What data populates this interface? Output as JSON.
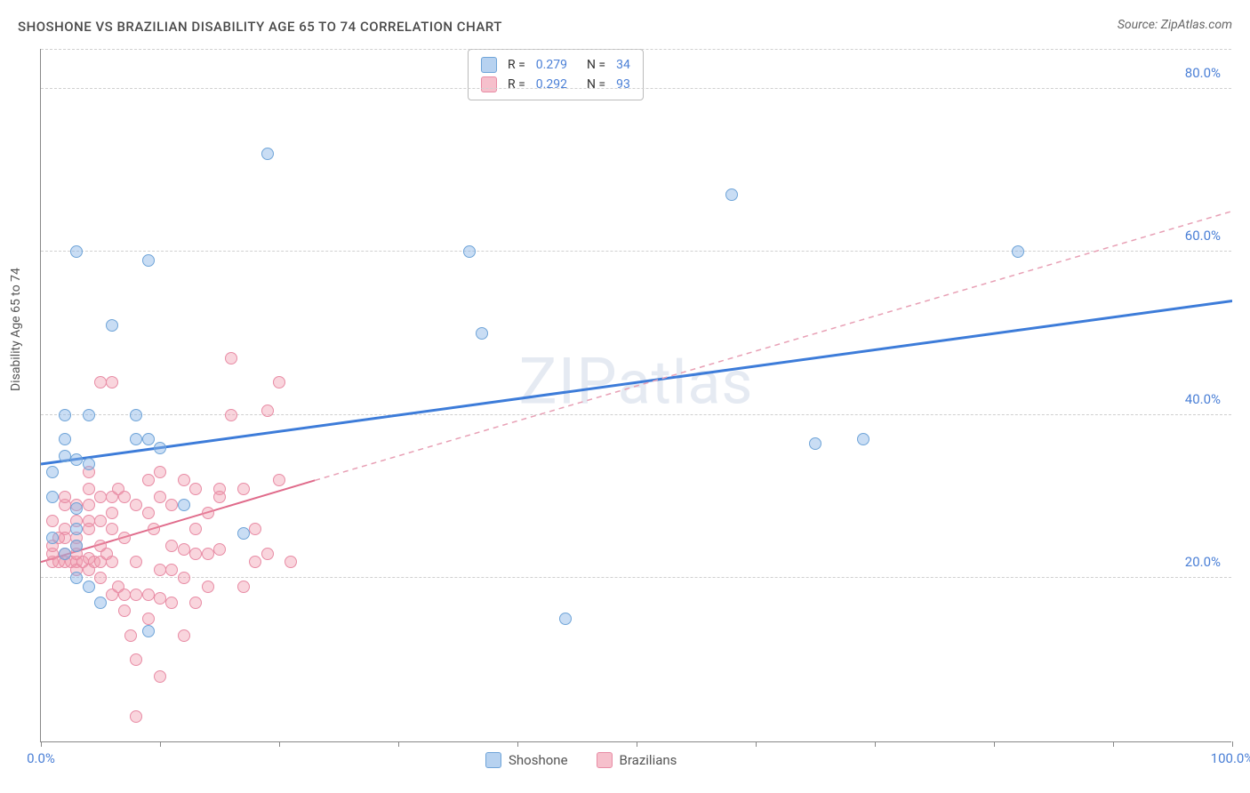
{
  "header": {
    "title": "SHOSHONE VS BRAZILIAN DISABILITY AGE 65 TO 74 CORRELATION CHART",
    "source": "Source: ZipAtlas.com"
  },
  "chart": {
    "type": "scatter",
    "ylabel": "Disability Age 65 to 74",
    "xlim": [
      0,
      100
    ],
    "ylim": [
      0,
      85
    ],
    "xticks": [
      0,
      10,
      20,
      30,
      40,
      50,
      60,
      70,
      80,
      90,
      100
    ],
    "xtick_labels": {
      "0": "0.0%",
      "100": "100.0%"
    },
    "yticks": [
      20,
      40,
      60,
      80
    ],
    "ytick_labels": [
      "20.0%",
      "40.0%",
      "60.0%",
      "80.0%"
    ],
    "grid_color": "#d0d0d0",
    "background_color": "#ffffff",
    "axis_color": "#888888",
    "tick_label_color": "#4a7fd6",
    "marker_size": 14,
    "watermark": "ZIPatlas",
    "series": [
      {
        "name": "Shoshone",
        "color_fill": "rgba(135,180,230,0.45)",
        "color_stroke": "#6fa4d8",
        "R": "0.279",
        "N": "34",
        "trend": {
          "x1": 0,
          "y1": 34,
          "x2": 100,
          "y2": 54,
          "dashed_after": 100,
          "stroke_width": 3
        },
        "points": [
          [
            3,
            60
          ],
          [
            9,
            59
          ],
          [
            2,
            40
          ],
          [
            2,
            37
          ],
          [
            3,
            34.5
          ],
          [
            2,
            35
          ],
          [
            1,
            33
          ],
          [
            1,
            30
          ],
          [
            3,
            28.5
          ],
          [
            3,
            26
          ],
          [
            6,
            51
          ],
          [
            8,
            40
          ],
          [
            8,
            37
          ],
          [
            9,
            37
          ],
          [
            19,
            72
          ],
          [
            36,
            60
          ],
          [
            37,
            50
          ],
          [
            12,
            29
          ],
          [
            17,
            25.5
          ],
          [
            5,
            17
          ],
          [
            9,
            13.5
          ],
          [
            44,
            15
          ],
          [
            65,
            36.5
          ],
          [
            69,
            37
          ],
          [
            82,
            60
          ],
          [
            4,
            40
          ],
          [
            58,
            67
          ],
          [
            4,
            34
          ],
          [
            2,
            23
          ],
          [
            3,
            24
          ],
          [
            4,
            19
          ],
          [
            3,
            20
          ],
          [
            1,
            25
          ],
          [
            10,
            36
          ]
        ]
      },
      {
        "name": "Brazilians",
        "color_fill": "rgba(240,150,170,0.4)",
        "color_stroke": "#e88ca5",
        "R": "0.292",
        "N": "93",
        "trend": {
          "x1": 0,
          "y1": 22,
          "x2": 23,
          "y2": 32,
          "extend_to": 100,
          "extend_y": 65,
          "stroke_width": 2
        },
        "points": [
          [
            1,
            22
          ],
          [
            1,
            23
          ],
          [
            1.5,
            22
          ],
          [
            2,
            23
          ],
          [
            2,
            22
          ],
          [
            2.5,
            22
          ],
          [
            3,
            22
          ],
          [
            3,
            23
          ],
          [
            3,
            21
          ],
          [
            3.5,
            22
          ],
          [
            4,
            22.5
          ],
          [
            4,
            21
          ],
          [
            4.5,
            22
          ],
          [
            5,
            22
          ],
          [
            5,
            24
          ],
          [
            5,
            20
          ],
          [
            5.5,
            23
          ],
          [
            6,
            22
          ],
          [
            6,
            18
          ],
          [
            6,
            26
          ],
          [
            6.5,
            19
          ],
          [
            7,
            18
          ],
          [
            7,
            16
          ],
          [
            7,
            25
          ],
          [
            7.5,
            13
          ],
          [
            8,
            22
          ],
          [
            8,
            18
          ],
          [
            8,
            10
          ],
          [
            8,
            3
          ],
          [
            9,
            18
          ],
          [
            9,
            15
          ],
          [
            9,
            28
          ],
          [
            9.5,
            26
          ],
          [
            10,
            17.5
          ],
          [
            10,
            30
          ],
          [
            10,
            21
          ],
          [
            10,
            8
          ],
          [
            11,
            17
          ],
          [
            11,
            21
          ],
          [
            11,
            24
          ],
          [
            12,
            23.5
          ],
          [
            12,
            20
          ],
          [
            12,
            13
          ],
          [
            13,
            23
          ],
          [
            13,
            31
          ],
          [
            13,
            17
          ],
          [
            14,
            23
          ],
          [
            14,
            28
          ],
          [
            14,
            19
          ],
          [
            15,
            23.5
          ],
          [
            15,
            31
          ],
          [
            15,
            30
          ],
          [
            16,
            47
          ],
          [
            16,
            40
          ],
          [
            17,
            31
          ],
          [
            17,
            19
          ],
          [
            18,
            26
          ],
          [
            18,
            22
          ],
          [
            19,
            40.5
          ],
          [
            19,
            23
          ],
          [
            20,
            44
          ],
          [
            20,
            32
          ],
          [
            21,
            22
          ],
          [
            5,
            44
          ],
          [
            6,
            44
          ],
          [
            6,
            30
          ],
          [
            6.5,
            31
          ],
          [
            7,
            30
          ],
          [
            3,
            29
          ],
          [
            3,
            27
          ],
          [
            4,
            31
          ],
          [
            1,
            27
          ],
          [
            2,
            29
          ],
          [
            4,
            27
          ],
          [
            2,
            26
          ],
          [
            2,
            25
          ],
          [
            3,
            25
          ],
          [
            4,
            26
          ],
          [
            1,
            24
          ],
          [
            1.5,
            25
          ],
          [
            3,
            24
          ],
          [
            5,
            27
          ],
          [
            6,
            28
          ],
          [
            2,
            30
          ],
          [
            4,
            29
          ],
          [
            5,
            30
          ],
          [
            4,
            33
          ],
          [
            8,
            29
          ],
          [
            9,
            32
          ],
          [
            11,
            29
          ],
          [
            12,
            32
          ],
          [
            10,
            33
          ],
          [
            13,
            26
          ]
        ]
      }
    ],
    "legend_bottom": [
      {
        "label": "Shoshone",
        "swatch": "blue"
      },
      {
        "label": "Brazilians",
        "swatch": "pink"
      }
    ]
  }
}
